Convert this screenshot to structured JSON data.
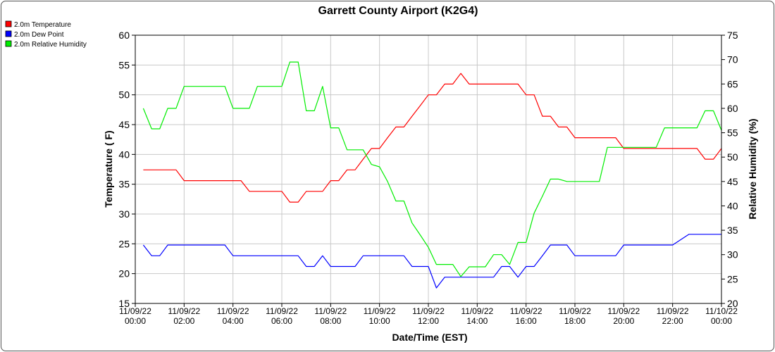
{
  "chart_data": {
    "type": "line",
    "title": "Garrett County Airport (K2G4)",
    "xlabel": "Date/Time (EST)",
    "ylabel_left": "Temperature ( F)",
    "ylabel_right": "Relative Humidity (%)",
    "ylim_left": [
      15,
      60
    ],
    "ylim_right": [
      20,
      75
    ],
    "xlim_hours": [
      0,
      24
    ],
    "y_ticks_left": [
      "15",
      "20",
      "25",
      "30",
      "35",
      "40",
      "45",
      "50",
      "55",
      "60"
    ],
    "y_ticks_right": [
      "20",
      "25",
      "30",
      "35",
      "40",
      "45",
      "50",
      "55",
      "60",
      "65",
      "70",
      "75"
    ],
    "x_ticks": [
      {
        "date": "11/09/22",
        "time": "00:00"
      },
      {
        "date": "11/09/22",
        "time": "02:00"
      },
      {
        "date": "11/09/22",
        "time": "04:00"
      },
      {
        "date": "11/09/22",
        "time": "06:00"
      },
      {
        "date": "11/09/22",
        "time": "08:00"
      },
      {
        "date": "11/09/22",
        "time": "10:00"
      },
      {
        "date": "11/09/22",
        "time": "12:00"
      },
      {
        "date": "11/09/22",
        "time": "14:00"
      },
      {
        "date": "11/09/22",
        "time": "16:00"
      },
      {
        "date": "11/09/22",
        "time": "18:00"
      },
      {
        "date": "11/09/22",
        "time": "20:00"
      },
      {
        "date": "11/09/22",
        "time": "22:00"
      },
      {
        "date": "11/10/22",
        "time": "00:00"
      }
    ],
    "grid": true,
    "legend_position": "top-left",
    "series": [
      {
        "name": "2.0m Temperature",
        "color": "#ff0000",
        "axis": "left",
        "x": [
          0.33,
          1.0,
          1.33,
          1.67,
          2.0,
          2.33,
          3.0,
          3.67,
          4.33,
          4.67,
          6.0,
          6.33,
          6.67,
          7.0,
          7.33,
          7.67,
          8.0,
          8.33,
          8.67,
          9.0,
          9.33,
          9.67,
          10.0,
          10.33,
          10.67,
          11.0,
          11.33,
          11.67,
          12.0,
          12.33,
          12.67,
          13.0,
          13.33,
          13.67,
          14.0,
          14.33,
          15.0,
          15.67,
          16.0,
          16.33,
          16.67,
          17.0,
          17.33,
          17.67,
          18.0,
          18.33,
          18.67,
          19.0,
          19.67,
          20.0,
          20.67,
          21.0,
          21.67,
          22.0,
          22.67,
          23.0,
          23.33,
          23.67,
          24.0
        ],
        "values": [
          37.4,
          37.4,
          37.4,
          37.4,
          35.6,
          35.6,
          35.6,
          35.6,
          35.6,
          33.8,
          33.8,
          32.0,
          32.0,
          33.8,
          33.8,
          33.8,
          35.6,
          35.6,
          37.4,
          37.4,
          39.2,
          41.0,
          41.0,
          42.8,
          44.6,
          44.6,
          46.4,
          48.2,
          50.0,
          50.0,
          51.8,
          51.8,
          53.6,
          51.8,
          51.8,
          51.8,
          51.8,
          51.8,
          50.0,
          50.0,
          46.4,
          46.4,
          44.6,
          44.6,
          42.8,
          42.8,
          42.8,
          42.8,
          42.8,
          41.0,
          41.0,
          41.0,
          41.0,
          41.0,
          41.0,
          41.0,
          39.2,
          39.2,
          41.0
        ]
      },
      {
        "name": "2.0m Dew Point",
        "color": "#0000ff",
        "axis": "left",
        "x": [
          0.33,
          0.67,
          1.0,
          1.33,
          1.67,
          2.0,
          3.0,
          3.67,
          4.0,
          4.33,
          5.0,
          6.0,
          6.67,
          7.0,
          7.33,
          7.67,
          8.0,
          8.33,
          8.67,
          9.0,
          9.33,
          9.67,
          10.0,
          10.33,
          10.67,
          11.0,
          11.33,
          11.67,
          12.0,
          12.33,
          12.67,
          13.0,
          13.33,
          13.67,
          14.0,
          14.33,
          14.67,
          15.0,
          15.33,
          15.67,
          16.0,
          16.33,
          16.67,
          17.0,
          17.33,
          17.67,
          18.0,
          18.33,
          18.67,
          19.0,
          19.33,
          19.67,
          20.0,
          20.67,
          21.0,
          21.67,
          22.0,
          22.67,
          23.0,
          24.0
        ],
        "values": [
          24.8,
          23.0,
          23.0,
          24.8,
          24.8,
          24.8,
          24.8,
          24.8,
          23.0,
          23.0,
          23.0,
          23.0,
          23.0,
          21.2,
          21.2,
          23.0,
          21.2,
          21.2,
          21.2,
          21.2,
          23.0,
          23.0,
          23.0,
          23.0,
          23.0,
          23.0,
          21.2,
          21.2,
          21.2,
          17.6,
          19.4,
          19.4,
          19.4,
          19.4,
          19.4,
          19.4,
          19.4,
          21.2,
          21.2,
          19.4,
          21.2,
          21.2,
          23.0,
          24.8,
          24.8,
          24.8,
          23.0,
          23.0,
          23.0,
          23.0,
          23.0,
          23.0,
          24.8,
          24.8,
          24.8,
          24.8,
          24.8,
          26.6,
          26.6,
          26.6
        ]
      },
      {
        "name": "2.0m Relative Humidity",
        "color": "#00ee00",
        "axis": "right",
        "x": [
          0.33,
          0.67,
          1.0,
          1.33,
          1.67,
          2.0,
          2.33,
          3.0,
          3.67,
          4.0,
          4.33,
          4.67,
          5.0,
          5.67,
          6.0,
          6.33,
          6.67,
          7.0,
          7.33,
          7.67,
          8.0,
          8.33,
          8.67,
          9.0,
          9.33,
          9.67,
          10.0,
          10.33,
          10.67,
          11.0,
          11.33,
          11.67,
          12.0,
          12.33,
          12.67,
          13.0,
          13.33,
          13.67,
          14.0,
          14.33,
          14.67,
          15.0,
          15.33,
          15.67,
          16.0,
          16.33,
          16.67,
          17.0,
          17.33,
          17.67,
          18.0,
          18.33,
          18.67,
          19.0,
          19.33,
          19.67,
          20.0,
          20.67,
          21.0,
          21.33,
          21.67,
          22.0,
          22.67,
          23.0,
          23.33,
          23.67,
          24.0
        ],
        "values": [
          60,
          55.8,
          55.8,
          60,
          60,
          64.5,
          64.5,
          64.5,
          64.5,
          60,
          60,
          60,
          64.5,
          64.5,
          64.5,
          69.5,
          69.5,
          59.5,
          59.5,
          64.5,
          56,
          56,
          51.5,
          51.5,
          51.5,
          48.5,
          48,
          45,
          41,
          41,
          36.5,
          34,
          31.5,
          28,
          28,
          28,
          25.5,
          27.5,
          27.5,
          27.5,
          30,
          30,
          28,
          32.5,
          32.5,
          38.5,
          42,
          45.5,
          45.5,
          45,
          45,
          45,
          45,
          45,
          52,
          52,
          52,
          52,
          52,
          52,
          56,
          56,
          56,
          56,
          59.5,
          59.5,
          55.5
        ]
      }
    ]
  }
}
